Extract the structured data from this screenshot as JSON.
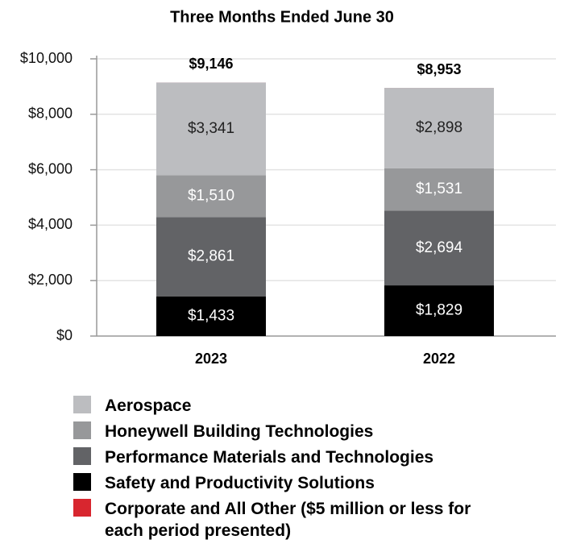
{
  "chart_data": {
    "type": "stacked_bar",
    "title": "Three Months Ended June 30",
    "categories": [
      "2023",
      "2022"
    ],
    "series": [
      {
        "name": "Aerospace",
        "color": "#bcbdc0",
        "label_color": "#222222",
        "values": [
          3341,
          2898
        ],
        "value_labels": [
          "$3,341",
          "$2,898"
        ]
      },
      {
        "name": "Honeywell Building Technologies",
        "color": "#97989a",
        "label_color": "#ffffff",
        "values": [
          1510,
          1531
        ],
        "value_labels": [
          "$1,510",
          "$1,531"
        ]
      },
      {
        "name": "Performance Materials and Technologies",
        "color": "#626366",
        "label_color": "#ffffff",
        "values": [
          2861,
          2694
        ],
        "value_labels": [
          "$2,861",
          "$2,694"
        ]
      },
      {
        "name": "Safety and Productivity Solutions",
        "color": "#000000",
        "label_color": "#ffffff",
        "values": [
          1433,
          1829
        ],
        "value_labels": [
          "$1,433",
          "$1,829"
        ]
      },
      {
        "name": "Corporate and All Other ($5 million or less for each period presented)",
        "color": "#d8262f",
        "values": [
          1,
          1
        ]
      }
    ],
    "totals": [
      9146,
      8953
    ],
    "total_labels": [
      "$9,146",
      "$8,953"
    ],
    "ylim": [
      0,
      10000
    ],
    "yticks": [
      {
        "value": 0,
        "label": "$0"
      },
      {
        "value": 2000,
        "label": "$2,000"
      },
      {
        "value": 4000,
        "label": "$4,000"
      },
      {
        "value": 6000,
        "label": "$6,000"
      },
      {
        "value": 8000,
        "label": "$8,000"
      },
      {
        "value": 10000,
        "label": "$10,000"
      }
    ],
    "grid": true
  }
}
